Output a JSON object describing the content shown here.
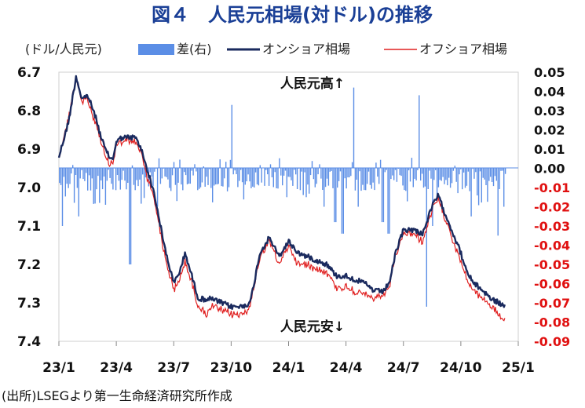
{
  "chart_data": {
    "type": "line",
    "title": "図４　人民元相場(対ドル)の推移",
    "left_axis_label": "(ドル/人民元)",
    "left_axis": {
      "min": 6.7,
      "max": 7.4,
      "inverted": true,
      "ticks": [
        "6.7",
        "6.8",
        "6.9",
        "7.0",
        "7.1",
        "7.2",
        "7.3",
        "7.4"
      ]
    },
    "right_axis": {
      "min": -0.09,
      "max": 0.05,
      "ticks": [
        "0.05",
        "0.04",
        "0.03",
        "0.02",
        "0.01",
        "0.00",
        "-0.01",
        "-0.02",
        "-0.03",
        "-0.04",
        "-0.05",
        "-0.06",
        "-0.07",
        "-0.08",
        "-0.09"
      ],
      "positive_color": "#111111",
      "negative_color": "#e01010"
    },
    "x_ticks": [
      "23/1",
      "23/4",
      "23/7",
      "23/10",
      "24/1",
      "24/4",
      "24/7",
      "24/10",
      "25/1"
    ],
    "annotations": {
      "top": "人民元高↑",
      "bottom": "人民元安↓"
    },
    "source": "(出所)LSEGより第一生命経済研究所作成",
    "legend": [
      {
        "label": "差(右)",
        "kind": "bar",
        "color": "#5b8ee6"
      },
      {
        "label": "オンショア相場",
        "kind": "line",
        "color": "#1a2a5e"
      },
      {
        "label": "オフショア相場",
        "kind": "line",
        "color": "#e02020"
      }
    ],
    "onshore_keypoints": [
      [
        0,
        6.92
      ],
      [
        0.5,
        6.83
      ],
      [
        0.9,
        6.71
      ],
      [
        1.2,
        6.77
      ],
      [
        1.5,
        6.76
      ],
      [
        1.8,
        6.8
      ],
      [
        2.0,
        6.83
      ],
      [
        2.2,
        6.87
      ],
      [
        2.5,
        6.91
      ],
      [
        2.8,
        6.93
      ],
      [
        3.0,
        6.88
      ],
      [
        3.3,
        6.87
      ],
      [
        3.6,
        6.87
      ],
      [
        4.0,
        6.87
      ],
      [
        4.3,
        6.9
      ],
      [
        4.6,
        6.95
      ],
      [
        5.0,
        7.02
      ],
      [
        5.5,
        7.15
      ],
      [
        6.0,
        7.25
      ],
      [
        6.3,
        7.22
      ],
      [
        6.6,
        7.17
      ],
      [
        7.0,
        7.24
      ],
      [
        7.3,
        7.29
      ],
      [
        7.7,
        7.29
      ],
      [
        8.0,
        7.29
      ],
      [
        8.5,
        7.3
      ],
      [
        9.0,
        7.31
      ],
      [
        9.5,
        7.31
      ],
      [
        10.0,
        7.3
      ],
      [
        10.5,
        7.17
      ],
      [
        11.0,
        7.13
      ],
      [
        11.5,
        7.18
      ],
      [
        12.0,
        7.14
      ],
      [
        12.5,
        7.17
      ],
      [
        13.0,
        7.18
      ],
      [
        13.5,
        7.19
      ],
      [
        14.0,
        7.2
      ],
      [
        14.5,
        7.23
      ],
      [
        15.0,
        7.23
      ],
      [
        15.5,
        7.24
      ],
      [
        16.0,
        7.25
      ],
      [
        16.5,
        7.27
      ],
      [
        17.0,
        7.27
      ],
      [
        17.3,
        7.24
      ],
      [
        17.6,
        7.17
      ],
      [
        18.0,
        7.11
      ],
      [
        18.5,
        7.11
      ],
      [
        19.0,
        7.12
      ],
      [
        19.5,
        7.05
      ],
      [
        19.8,
        7.02
      ],
      [
        20.2,
        7.07
      ],
      [
        20.6,
        7.12
      ],
      [
        21.0,
        7.17
      ],
      [
        21.3,
        7.22
      ],
      [
        21.7,
        7.25
      ],
      [
        22.2,
        7.27
      ],
      [
        22.6,
        7.29
      ],
      [
        23.0,
        7.3
      ],
      [
        23.3,
        7.31
      ]
    ],
    "offshore_keypoints": [
      [
        0,
        6.92
      ],
      [
        0.5,
        6.82
      ],
      [
        0.9,
        6.71
      ],
      [
        1.2,
        6.78
      ],
      [
        1.5,
        6.77
      ],
      [
        1.8,
        6.82
      ],
      [
        2.0,
        6.84
      ],
      [
        2.2,
        6.88
      ],
      [
        2.5,
        6.93
      ],
      [
        2.8,
        6.94
      ],
      [
        3.0,
        6.89
      ],
      [
        3.3,
        6.88
      ],
      [
        3.6,
        6.88
      ],
      [
        4.0,
        6.88
      ],
      [
        4.3,
        6.91
      ],
      [
        4.6,
        6.97
      ],
      [
        5.0,
        7.03
      ],
      [
        5.5,
        7.17
      ],
      [
        6.0,
        7.27
      ],
      [
        6.3,
        7.24
      ],
      [
        6.6,
        7.19
      ],
      [
        7.0,
        7.26
      ],
      [
        7.3,
        7.31
      ],
      [
        7.7,
        7.33
      ],
      [
        8.0,
        7.31
      ],
      [
        8.5,
        7.32
      ],
      [
        9.0,
        7.33
      ],
      [
        9.5,
        7.33
      ],
      [
        10.0,
        7.31
      ],
      [
        10.5,
        7.18
      ],
      [
        11.0,
        7.14
      ],
      [
        11.5,
        7.2
      ],
      [
        12.0,
        7.15
      ],
      [
        12.5,
        7.2
      ],
      [
        13.0,
        7.2
      ],
      [
        13.5,
        7.21
      ],
      [
        14.0,
        7.22
      ],
      [
        14.5,
        7.26
      ],
      [
        15.0,
        7.26
      ],
      [
        15.5,
        7.27
      ],
      [
        16.0,
        7.28
      ],
      [
        16.5,
        7.29
      ],
      [
        17.0,
        7.28
      ],
      [
        17.3,
        7.25
      ],
      [
        17.6,
        7.18
      ],
      [
        18.0,
        7.12
      ],
      [
        18.5,
        7.12
      ],
      [
        19.0,
        7.14
      ],
      [
        19.5,
        7.06
      ],
      [
        19.8,
        7.03
      ],
      [
        20.2,
        7.08
      ],
      [
        20.6,
        7.14
      ],
      [
        21.0,
        7.19
      ],
      [
        21.3,
        7.24
      ],
      [
        21.7,
        7.27
      ],
      [
        22.2,
        7.29
      ],
      [
        22.6,
        7.31
      ],
      [
        23.0,
        7.33
      ],
      [
        23.3,
        7.35
      ]
    ],
    "diff_spikes": [
      [
        0.15,
        -0.03
      ],
      [
        1.0,
        -0.025
      ],
      [
        2.1,
        -0.018
      ],
      [
        3.7,
        -0.05
      ],
      [
        5.1,
        -0.02
      ],
      [
        6.8,
        -0.008
      ],
      [
        8.8,
        -0.012
      ],
      [
        9.0,
        0.033
      ],
      [
        10.2,
        -0.01
      ],
      [
        12.9,
        -0.015
      ],
      [
        13.8,
        -0.02
      ],
      [
        14.4,
        -0.028
      ],
      [
        14.8,
        -0.034
      ],
      [
        15.4,
        0.042
      ],
      [
        15.6,
        -0.02
      ],
      [
        16.9,
        -0.028
      ],
      [
        17.2,
        -0.034
      ],
      [
        18.8,
        0.038
      ],
      [
        19.2,
        -0.072
      ],
      [
        19.5,
        -0.03
      ],
      [
        21.5,
        -0.025
      ],
      [
        22.9,
        -0.035
      ],
      [
        23.2,
        -0.02
      ]
    ]
  }
}
